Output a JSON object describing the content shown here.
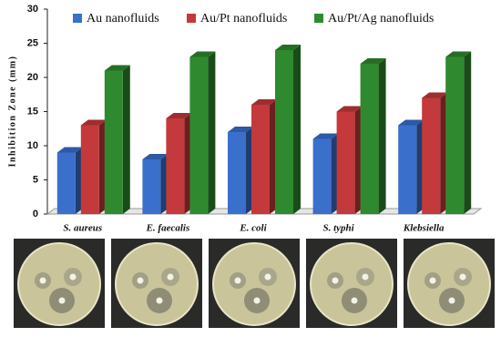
{
  "chart_data": {
    "type": "bar3d",
    "y_label": "Inhibition Zone (mm)",
    "categories": [
      "S. aureus",
      "E. faecalis",
      "E. coli",
      "S. typhi",
      "Klebsiella"
    ],
    "series": [
      {
        "name": "Au nanofluids",
        "color": "#3a6fcc",
        "values": [
          9,
          8,
          12,
          11,
          13
        ]
      },
      {
        "name": "Au/Pt nanofluids",
        "color": "#c4393b",
        "values": [
          13,
          14,
          16,
          15,
          17
        ]
      },
      {
        "name": "Au/Pt/Ag nanofluids",
        "color": "#2f8a2f",
        "values": [
          21,
          23,
          24,
          22,
          23
        ]
      }
    ],
    "ylim": [
      0,
      30
    ],
    "yticks": [
      0,
      5,
      10,
      15,
      20,
      25,
      30
    ],
    "grid": false
  }
}
